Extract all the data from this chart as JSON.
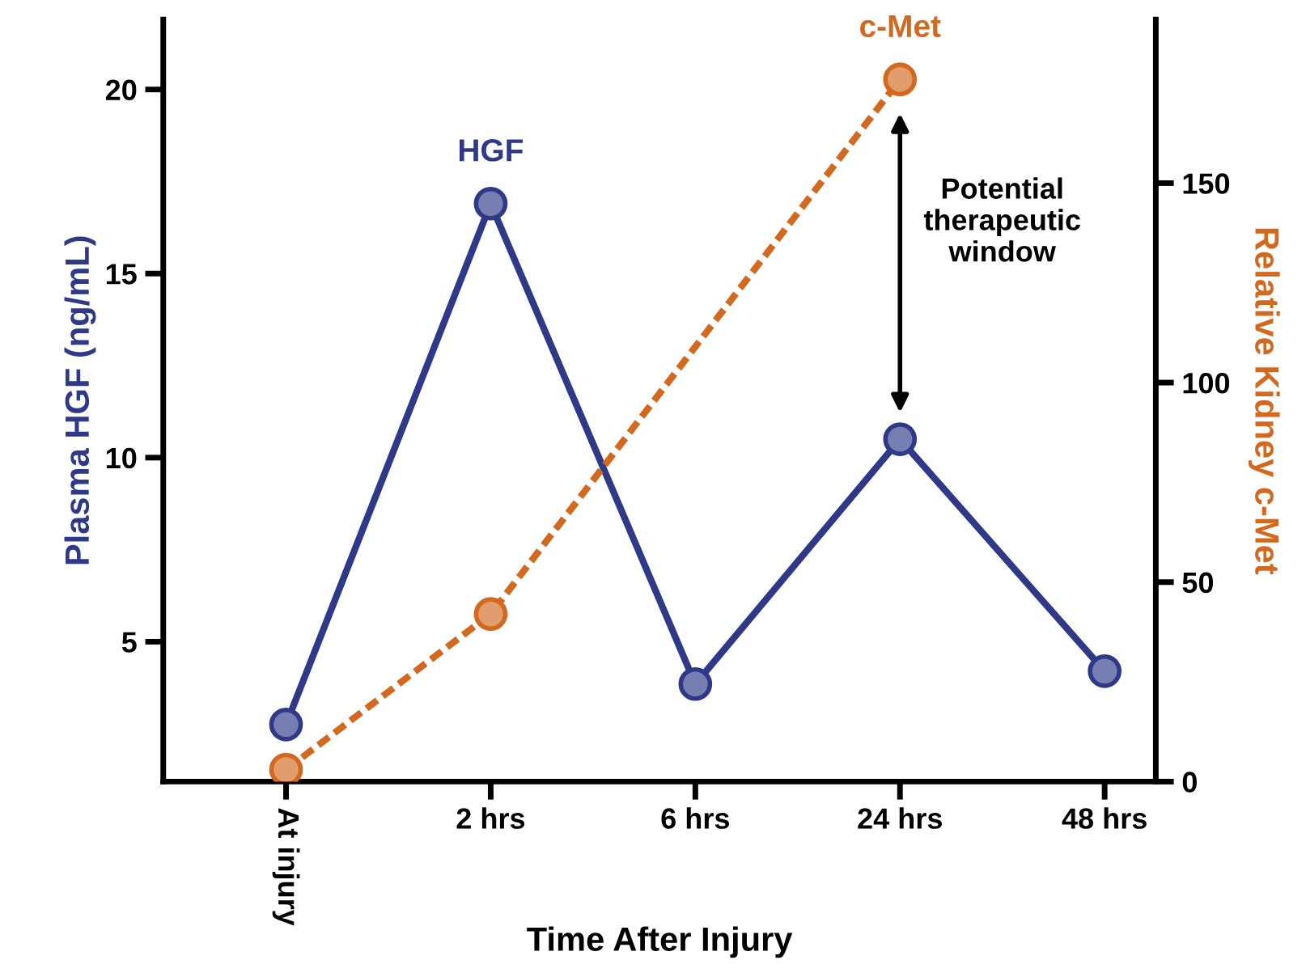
{
  "chart_data": {
    "type": "line",
    "xlabel": "Time After Injury",
    "ylabel": "Plasma HGF (ng/mL)",
    "y2label": "Relative Kidney c-Met",
    "categories": [
      "At injury",
      "2 hrs",
      "6 hrs",
      "24 hrs",
      "48 hrs"
    ],
    "series": [
      {
        "name": "HGF",
        "color": "#2e3a87",
        "values": [
          2.75,
          16.9,
          3.85,
          10.5,
          4.2
        ],
        "line_style": "solid"
      },
      {
        "name": "c-Met",
        "color": "#d2691e",
        "values": [
          3,
          42,
          null,
          176,
          null
        ],
        "axis": "y2",
        "line_style": "dashed"
      }
    ],
    "ylim": [
      1.2,
      21.9
    ],
    "yticks": [
      5,
      10,
      15,
      20
    ],
    "y2lim": [
      0,
      191
    ],
    "y2ticks": [
      0,
      50,
      100,
      150
    ],
    "marker": "circle",
    "grid": false,
    "legend": false,
    "annotations": [
      "Potential\ntherapeutic\nwindow"
    ]
  }
}
